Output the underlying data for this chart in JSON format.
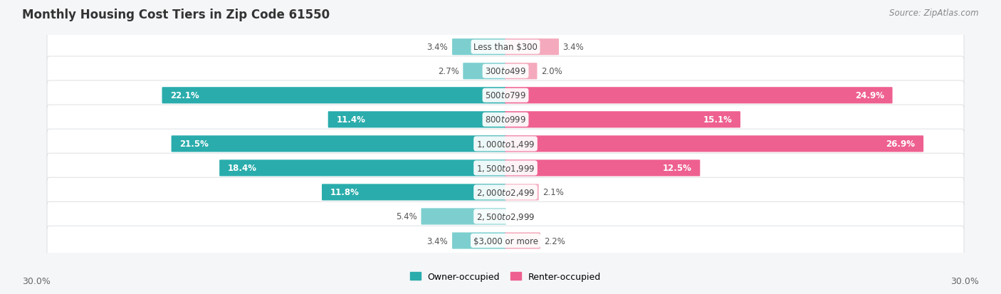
{
  "title": "Monthly Housing Cost Tiers in Zip Code 61550",
  "source": "Source: ZipAtlas.com",
  "categories": [
    "Less than $300",
    "$300 to $499",
    "$500 to $799",
    "$800 to $999",
    "$1,000 to $1,499",
    "$1,500 to $1,999",
    "$2,000 to $2,499",
    "$2,500 to $2,999",
    "$3,000 or more"
  ],
  "owner_values": [
    3.4,
    2.7,
    22.1,
    11.4,
    21.5,
    18.4,
    11.8,
    5.4,
    3.4
  ],
  "renter_values": [
    3.4,
    2.0,
    24.9,
    15.1,
    26.9,
    12.5,
    2.1,
    0.0,
    2.2
  ],
  "owner_color_strong": "#2AACAC",
  "owner_color_light": "#7DCFCF",
  "renter_color_strong": "#EE6090",
  "renter_color_light": "#F4AABC",
  "bg_color": "#f5f6f8",
  "row_bg_color": "#ffffff",
  "row_border_color": "#d8dade",
  "max_value": 30.0,
  "axis_label_left": "30.0%",
  "axis_label_right": "30.0%",
  "legend_owner": "Owner-occupied",
  "legend_renter": "Renter-occupied",
  "title_fontsize": 12,
  "source_fontsize": 8.5,
  "bar_label_fontsize": 8.5,
  "category_fontsize": 8.5,
  "bar_height": 0.6,
  "large_threshold": 10.0
}
